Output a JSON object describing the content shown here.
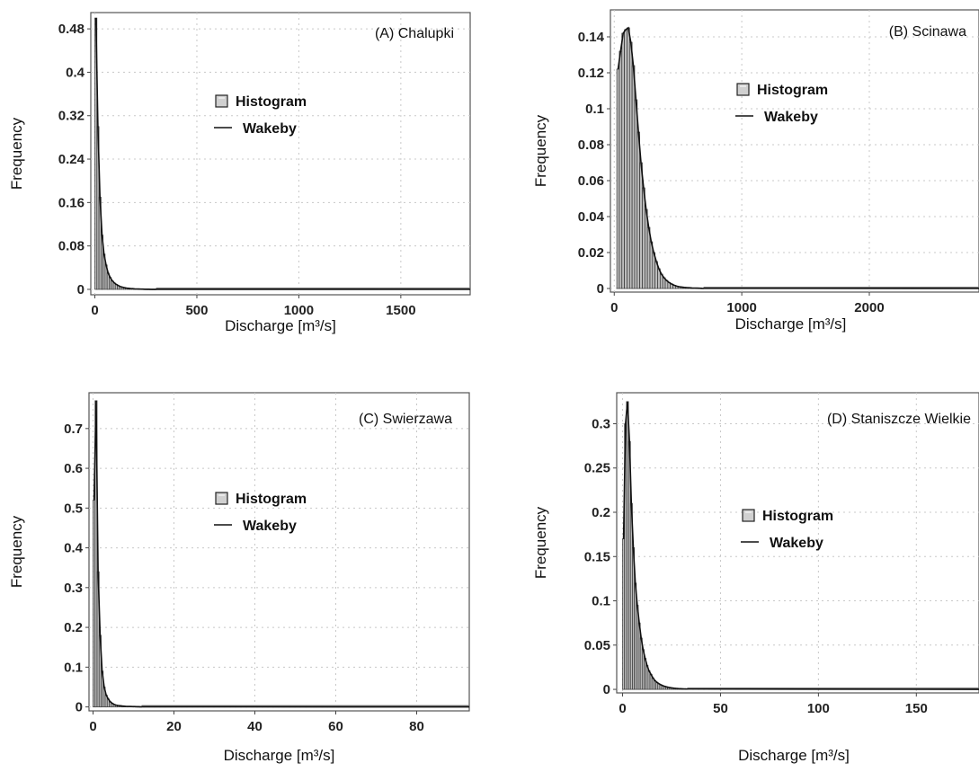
{
  "chart_data": [
    {
      "type": "bar",
      "title": "(A) Chalupki",
      "xlabel": "Discharge [m³/s]",
      "ylabel": "Frequency",
      "xlim": [
        -20,
        1840
      ],
      "ylim": [
        -0.01,
        0.51
      ],
      "xticks": [
        0,
        500,
        1000,
        1500
      ],
      "yticks": [
        "0",
        "0.08",
        "0.16",
        "0.24",
        "0.32",
        "0.4",
        "0.48"
      ],
      "grid": true,
      "legend": [
        "Histogram",
        "Wakeby"
      ],
      "legend_position": "upper-center",
      "bin_width": 10,
      "values": [
        0.5,
        0.3,
        0.17,
        0.1,
        0.065,
        0.045,
        0.03,
        0.022,
        0.016,
        0.012,
        0.009,
        0.007,
        0.005,
        0.004,
        0.003,
        0.0025,
        0.002,
        0.0015,
        0.0012,
        0.001,
        0.0008,
        0.0006,
        0.0005,
        0.0004,
        0.0003,
        0.00025,
        0.0002,
        0.00015,
        0.0001,
        0.0001
      ],
      "tail_to": 1840
    },
    {
      "type": "bar",
      "title": "(B) Scinawa",
      "xlabel": "Discharge [m³/s]",
      "ylabel": "Frequency",
      "xlim": [
        -30,
        2860
      ],
      "ylim": [
        -0.002,
        0.155
      ],
      "xticks": [
        0,
        1000,
        2000
      ],
      "yticks": [
        "0",
        "0.02",
        "0.04",
        "0.06",
        "0.08",
        "0.1",
        "0.12",
        "0.14"
      ],
      "grid": true,
      "legend": [
        "Histogram",
        "Wakeby"
      ],
      "legend_position": "upper-center",
      "bin_width": 20,
      "values": [
        0.122,
        0.132,
        0.142,
        0.144,
        0.145,
        0.137,
        0.124,
        0.105,
        0.087,
        0.07,
        0.056,
        0.044,
        0.034,
        0.026,
        0.02,
        0.015,
        0.011,
        0.008,
        0.006,
        0.0045,
        0.0033,
        0.0025,
        0.0018,
        0.0013,
        0.001,
        0.0008,
        0.0006,
        0.0005,
        0.0004,
        0.0003,
        0.00025,
        0.0002,
        0.00015,
        0.0001
      ],
      "x_start": 20,
      "tail_to": 2860
    },
    {
      "type": "bar",
      "title": "(C) Swierzawa",
      "xlabel": "Discharge [m³/s]",
      "ylabel": "Frequency",
      "xlim": [
        -1,
        93
      ],
      "ylim": [
        -0.01,
        0.79
      ],
      "xticks": [
        0,
        20,
        40,
        60,
        80
      ],
      "yticks": [
        "0",
        "0.1",
        "0.2",
        "0.3",
        "0.4",
        "0.5",
        "0.6",
        "0.7"
      ],
      "grid": true,
      "legend": [
        "Histogram",
        "Wakeby"
      ],
      "legend_position": "upper-center",
      "bin_width": 0.5,
      "values": [
        0.52,
        0.77,
        0.34,
        0.18,
        0.09,
        0.05,
        0.03,
        0.02,
        0.013,
        0.009,
        0.006,
        0.0045,
        0.0035,
        0.0028,
        0.0022,
        0.0018,
        0.0014,
        0.0012,
        0.001,
        0.0009,
        0.0008,
        0.0007,
        0.0006,
        0.0005
      ],
      "tail_to": 93
    },
    {
      "type": "bar",
      "title": "(D) Staniszcze Wielkie",
      "xlabel": "Discharge [m³/s]",
      "ylabel": "Frequency",
      "xlim": [
        -3,
        182
      ],
      "ylim": [
        -0.004,
        0.335
      ],
      "xticks": [
        0,
        50,
        100,
        150
      ],
      "yticks": [
        "0",
        "0.05",
        "0.1",
        "0.15",
        "0.2",
        "0.25",
        "0.3"
      ],
      "grid": true,
      "legend": [
        "Histogram",
        "Wakeby"
      ],
      "legend_position": "upper-center",
      "bin_width": 1,
      "values": [
        0.17,
        0.3,
        0.325,
        0.28,
        0.21,
        0.16,
        0.12,
        0.095,
        0.075,
        0.058,
        0.045,
        0.035,
        0.027,
        0.021,
        0.017,
        0.013,
        0.01,
        0.008,
        0.0065,
        0.0052,
        0.0042,
        0.0034,
        0.0028,
        0.0023,
        0.0019,
        0.0016,
        0.0013,
        0.0011,
        0.0009,
        0.0008,
        0.0007,
        0.0006,
        0.0005
      ],
      "tail_to": 182
    }
  ]
}
